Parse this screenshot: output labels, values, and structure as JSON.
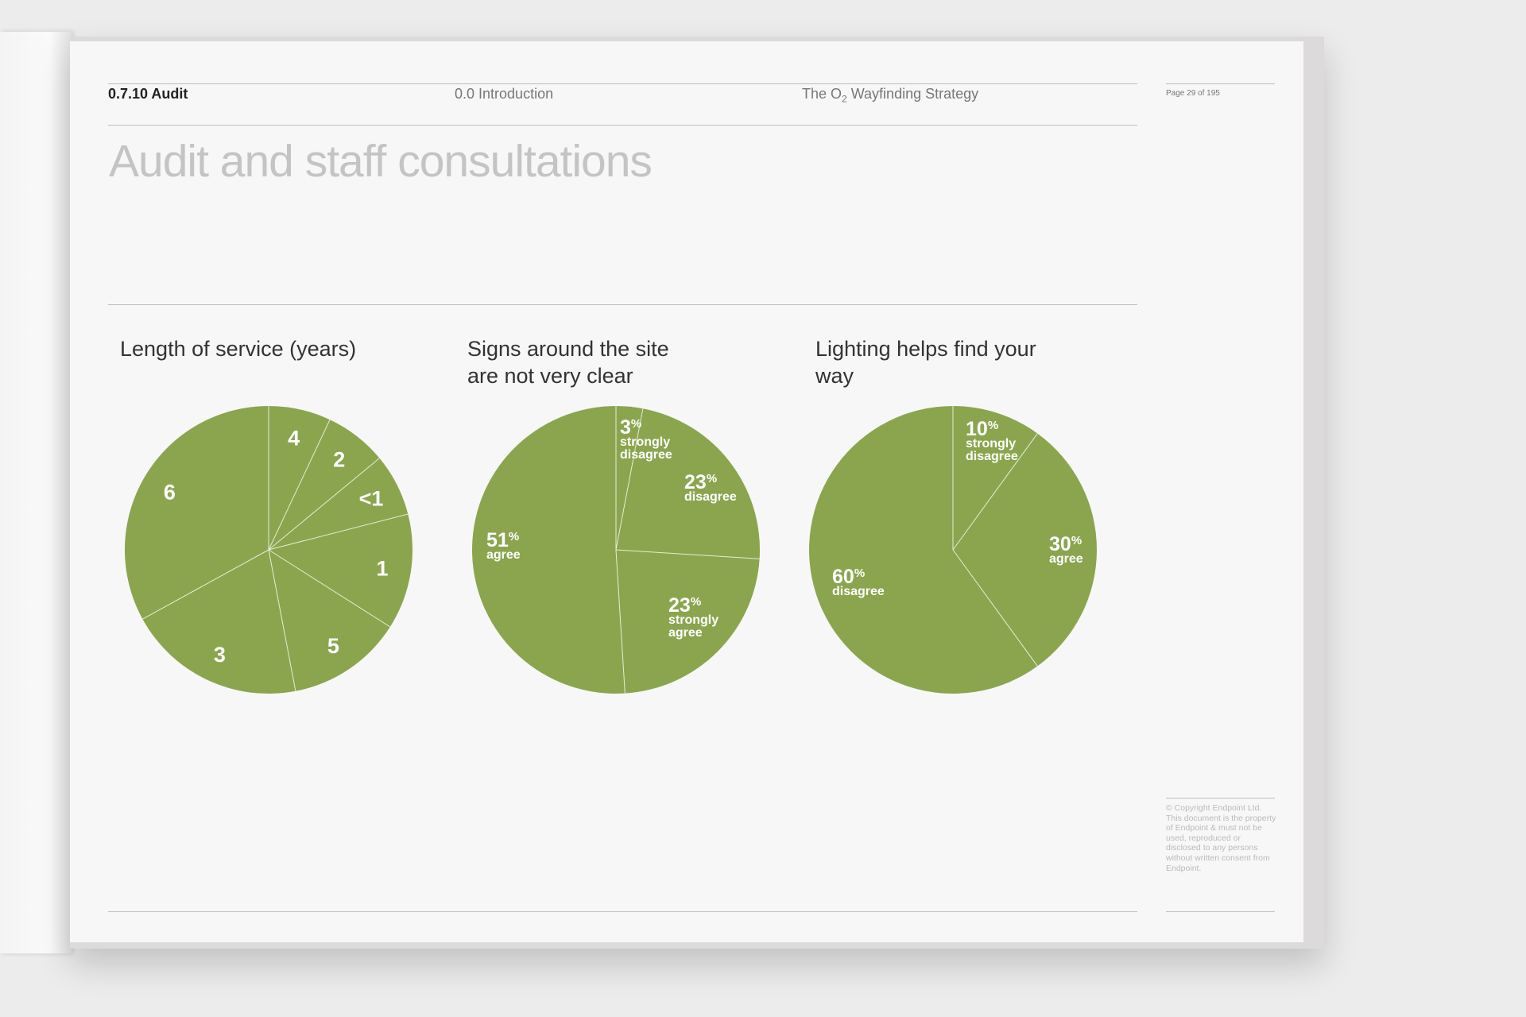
{
  "header": {
    "section": "0.7.10 Audit",
    "chapter": "0.0 Introduction",
    "doc_title_pre": "The O",
    "doc_title_sub": "2",
    "doc_title_post": " Wayfinding Strategy",
    "page": "Page 29 of 195"
  },
  "page_title": "Audit and staff consultations",
  "copyright": "© Copyright Endpoint Ltd. This document is the property of Endpoint & must not be used, reproduced or disclosed to any persons without written consent from Endpoint.",
  "colors": {
    "slice": "#8ba54f",
    "divider": "#e4ecd4",
    "label": "#ffffff"
  },
  "chart_data": [
    {
      "type": "pie",
      "title": "Length of service (years)",
      "unit": "percent",
      "slices": [
        {
          "label": "4",
          "value": 7
        },
        {
          "label": "2",
          "value": 7
        },
        {
          "label": "<1",
          "value": 7
        },
        {
          "label": "1",
          "value": 13
        },
        {
          "label": "5",
          "value": 13
        },
        {
          "label": "3",
          "value": 20
        },
        {
          "label": "6",
          "value": 33
        }
      ]
    },
    {
      "type": "pie",
      "title": "Signs around the site are not very clear",
      "unit": "percent",
      "slices": [
        {
          "label": "strongly disagree",
          "value": 3,
          "display": "3",
          "words": [
            "strongly",
            "disagree"
          ]
        },
        {
          "label": "disagree",
          "value": 23,
          "display": "23",
          "words": [
            "disagree"
          ]
        },
        {
          "label": "strongly agree",
          "value": 23,
          "display": "23",
          "words": [
            "strongly",
            "agree"
          ]
        },
        {
          "label": "agree",
          "value": 51,
          "display": "51",
          "words": [
            "agree"
          ]
        }
      ]
    },
    {
      "type": "pie",
      "title": "Lighting helps find your way",
      "unit": "percent",
      "slices": [
        {
          "label": "strongly disagree",
          "value": 10,
          "display": "10",
          "words": [
            "strongly",
            "disagree"
          ]
        },
        {
          "label": "agree",
          "value": 30,
          "display": "30",
          "words": [
            "agree"
          ]
        },
        {
          "label": "disagree",
          "value": 60,
          "display": "60",
          "words": [
            "disagree"
          ]
        }
      ]
    }
  ]
}
